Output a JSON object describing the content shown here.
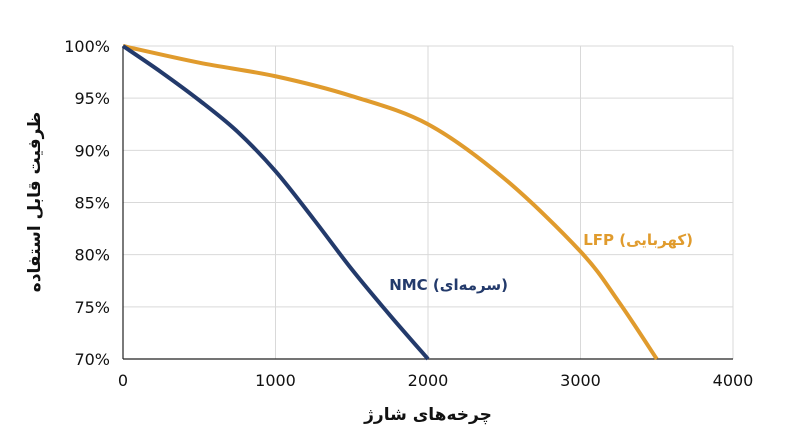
{
  "chart_data": {
    "type": "line",
    "xlabel": "چرخه‌های شارژ",
    "ylabel": "ظرفیت قابل استفاده",
    "xlim": [
      0,
      4000
    ],
    "ylim": [
      70,
      100
    ],
    "x_ticks": [
      0,
      1000,
      2000,
      3000,
      4000
    ],
    "x_tick_labels": [
      "0",
      "1000",
      "2000",
      "3000",
      "4000"
    ],
    "y_ticks": [
      70,
      75,
      80,
      85,
      90,
      95,
      100
    ],
    "y_tick_labels": [
      "70%",
      "75%",
      "80%",
      "85%",
      "90%",
      "95%",
      "100%"
    ],
    "grid": true,
    "series": [
      {
        "name": "LFP (کهربایی)",
        "color": "#E09B2D",
        "x": [
          0,
          500,
          1000,
          1500,
          2000,
          2500,
          3000,
          3250,
          3500
        ],
        "y": [
          100,
          98.4,
          97.1,
          95.2,
          92.5,
          87.3,
          80.3,
          75.5,
          70
        ]
      },
      {
        "name": "NMC (سرمه‌ای)",
        "color": "#233A6B",
        "x": [
          0,
          250,
          500,
          750,
          1000,
          1250,
          1500,
          1750,
          2000
        ],
        "y": [
          100,
          97.5,
          94.8,
          91.8,
          88.0,
          83.4,
          78.6,
          74.2,
          70
        ]
      }
    ]
  }
}
